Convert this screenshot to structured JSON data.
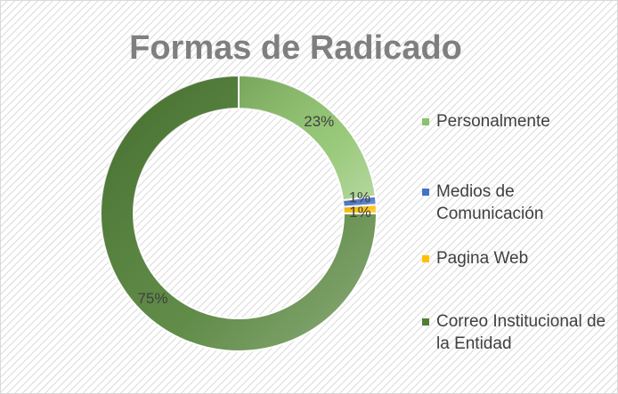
{
  "chart_data": {
    "type": "donut",
    "title": "Formas de Radicado",
    "categories": [
      "Personalmente",
      "Medios de Comunicación",
      "Pagina Web",
      "Correo Institucional de la Entidad"
    ],
    "values": [
      23,
      1,
      1,
      75
    ],
    "value_labels": [
      "23%",
      "1%",
      "1%",
      "75%"
    ],
    "colors": [
      "#8cc26a",
      "#4472c4",
      "#ffc000",
      "#4f7f34"
    ],
    "legend": "right"
  }
}
